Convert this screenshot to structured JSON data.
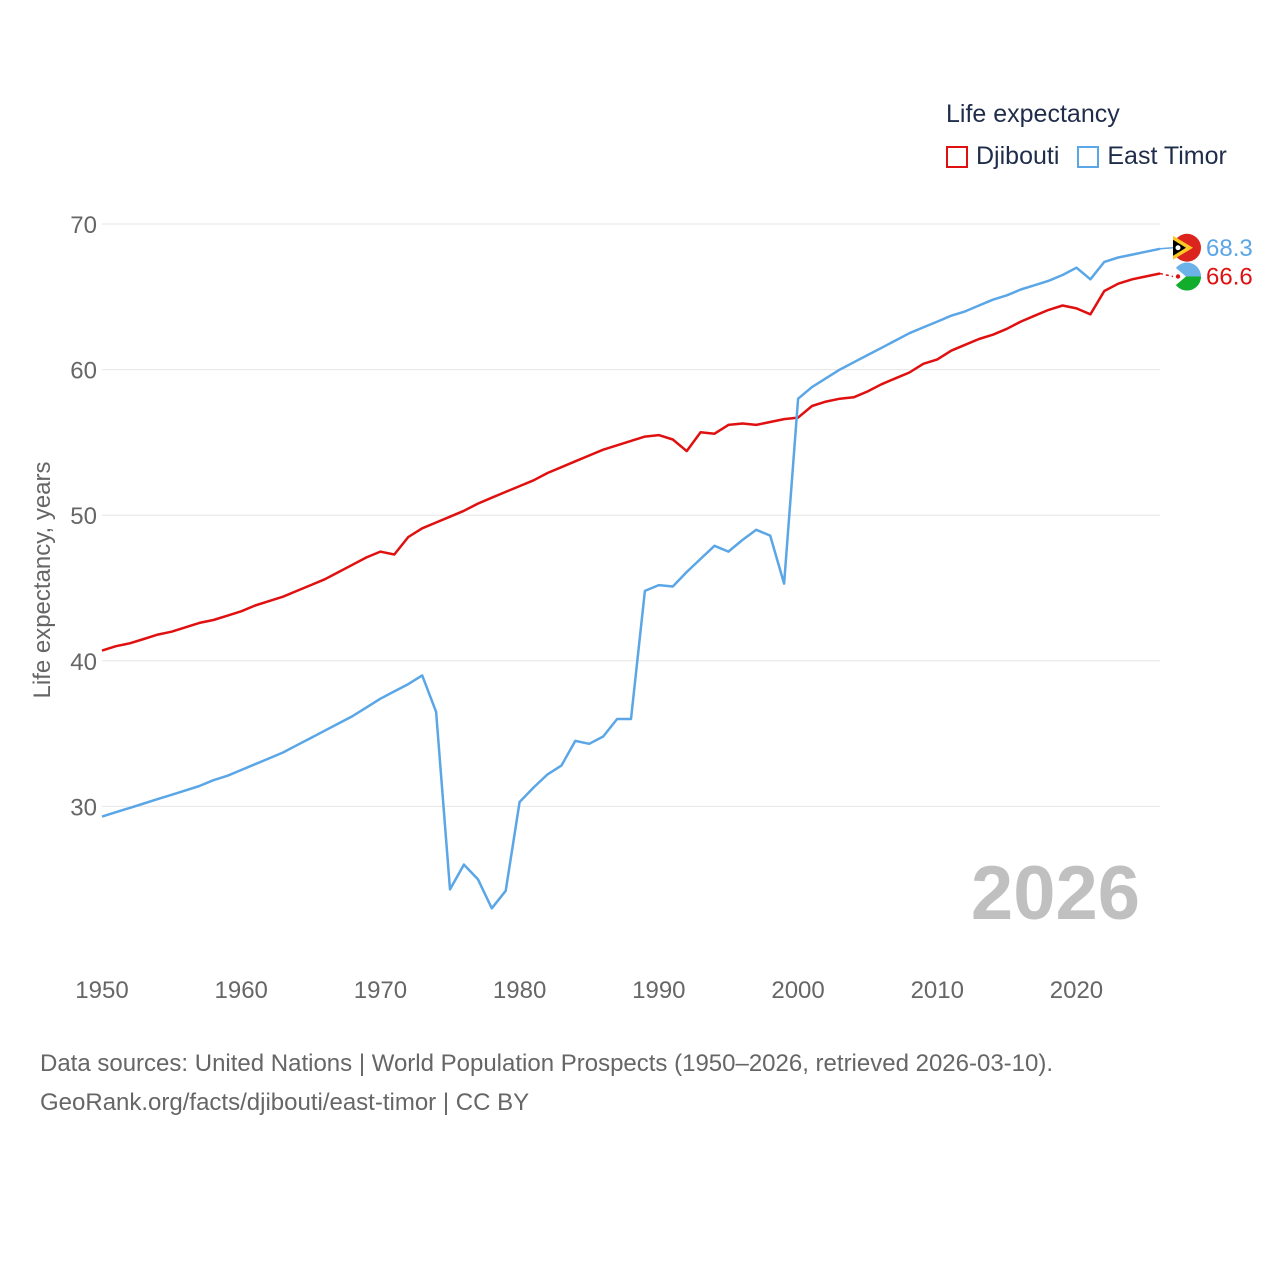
{
  "legend": {
    "title": "Life expectancy",
    "items": [
      {
        "label": "Djibouti",
        "color": "#e01010"
      },
      {
        "label": "East Timor",
        "color": "#5aa6e6"
      }
    ]
  },
  "sources": {
    "line1": "Data sources: United Nations | World Population Prospects (1950–2026, retrieved 2026-03-10).",
    "line2": "GeoRank.org/facts/djibouti/east-timor | CC BY"
  },
  "current_year": "2026",
  "chart_data": {
    "type": "line",
    "title": "Life expectancy",
    "xlabel": "",
    "ylabel": "Life expectancy, years",
    "xlim": [
      1950,
      2026
    ],
    "ylim": [
      20,
      70
    ],
    "x_ticks": [
      1950,
      1960,
      1970,
      1980,
      1990,
      2000,
      2010,
      2020
    ],
    "y_ticks": [
      30,
      40,
      50,
      60,
      70
    ],
    "grid": true,
    "x": [
      1950,
      1951,
      1952,
      1953,
      1954,
      1955,
      1956,
      1957,
      1958,
      1959,
      1960,
      1961,
      1962,
      1963,
      1964,
      1965,
      1966,
      1967,
      1968,
      1969,
      1970,
      1971,
      1972,
      1973,
      1974,
      1975,
      1976,
      1977,
      1978,
      1979,
      1980,
      1981,
      1982,
      1983,
      1984,
      1985,
      1986,
      1987,
      1988,
      1989,
      1990,
      1991,
      1992,
      1993,
      1994,
      1995,
      1996,
      1997,
      1998,
      1999,
      2000,
      2001,
      2002,
      2003,
      2004,
      2005,
      2006,
      2007,
      2008,
      2009,
      2010,
      2011,
      2012,
      2013,
      2014,
      2015,
      2016,
      2017,
      2018,
      2019,
      2020,
      2021,
      2022,
      2023,
      2024,
      2025,
      2026
    ],
    "series": [
      {
        "name": "Djibouti",
        "color": "#e01010",
        "end_label": "66.6",
        "values": [
          40.7,
          41.0,
          41.2,
          41.5,
          41.8,
          42.0,
          42.3,
          42.6,
          42.8,
          43.1,
          43.4,
          43.8,
          44.1,
          44.4,
          44.8,
          45.2,
          45.6,
          46.1,
          46.6,
          47.1,
          47.5,
          47.3,
          48.5,
          49.1,
          49.5,
          49.9,
          50.3,
          50.8,
          51.2,
          51.6,
          52.0,
          52.4,
          52.9,
          53.3,
          53.7,
          54.1,
          54.5,
          54.8,
          55.1,
          55.4,
          55.5,
          55.2,
          54.4,
          55.7,
          55.6,
          56.2,
          56.3,
          56.2,
          56.4,
          56.6,
          56.7,
          57.5,
          57.8,
          58.0,
          58.1,
          58.5,
          59.0,
          59.4,
          59.8,
          60.4,
          60.7,
          61.3,
          61.7,
          62.1,
          62.4,
          62.8,
          63.3,
          63.7,
          64.1,
          64.4,
          64.2,
          63.8,
          65.4,
          65.9,
          66.2,
          66.4,
          66.6
        ]
      },
      {
        "name": "East Timor",
        "color": "#5aa6e6",
        "end_label": "68.3",
        "values": [
          29.3,
          29.6,
          29.9,
          30.2,
          30.5,
          30.8,
          31.1,
          31.4,
          31.8,
          32.1,
          32.5,
          32.9,
          33.3,
          33.7,
          34.2,
          34.7,
          35.2,
          35.7,
          36.2,
          36.8,
          37.4,
          37.9,
          38.4,
          39.0,
          36.5,
          24.3,
          26.0,
          25.0,
          23.0,
          24.2,
          30.3,
          31.3,
          32.2,
          32.8,
          34.5,
          34.3,
          34.8,
          36.0,
          36.0,
          44.8,
          45.2,
          45.1,
          46.1,
          47.0,
          47.9,
          47.5,
          48.3,
          49.0,
          48.6,
          45.3,
          58.0,
          58.8,
          59.4,
          60.0,
          60.5,
          61.0,
          61.5,
          62.0,
          62.5,
          62.9,
          63.3,
          63.7,
          64.0,
          64.4,
          64.8,
          65.1,
          65.5,
          65.8,
          66.1,
          66.5,
          67.0,
          66.2,
          67.4,
          67.7,
          67.9,
          68.1,
          68.3
        ]
      }
    ]
  }
}
